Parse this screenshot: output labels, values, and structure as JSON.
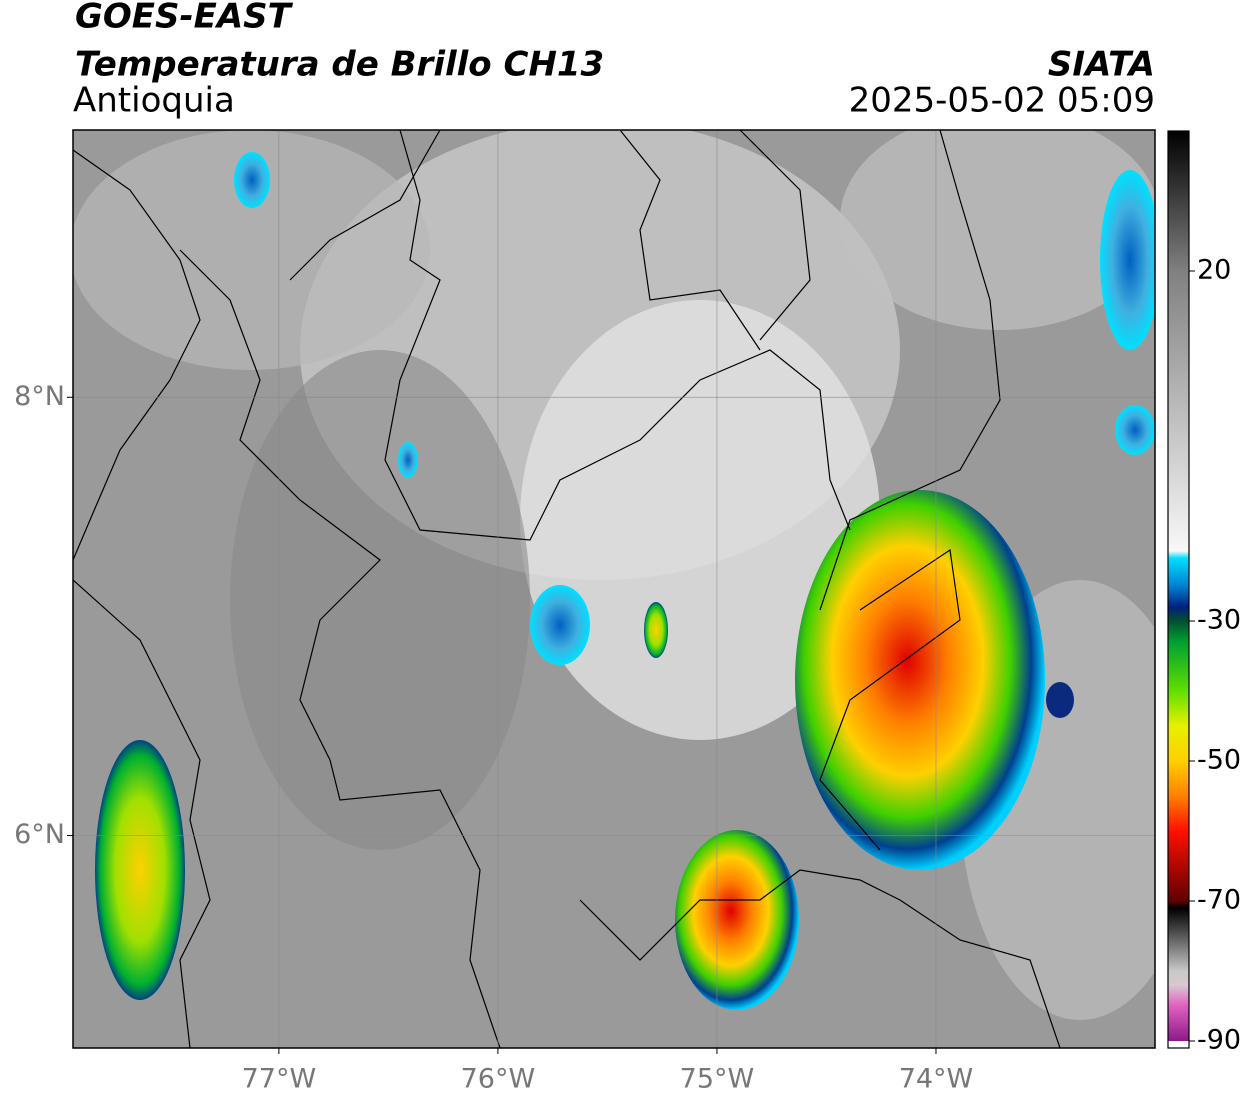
{
  "header": {
    "title": "GOES-EAST",
    "subtitle": "Temperatura de Brillo CH13",
    "region": "Antioquia",
    "source": "SIATA",
    "timestamp": "2025-05-02 05:09"
  },
  "map": {
    "lonlim": [
      -77.94,
      -73.0
    ],
    "latlim": [
      5.03,
      9.22
    ],
    "lonticks": [
      {
        "value": -77,
        "label": "77°W"
      },
      {
        "value": -76,
        "label": "76°W"
      },
      {
        "value": -75,
        "label": "75°W"
      },
      {
        "value": -74,
        "label": "74°W"
      }
    ],
    "latticks": [
      {
        "value": 8,
        "label": "8°N"
      },
      {
        "value": 6,
        "label": "6°N"
      }
    ],
    "grid": true
  },
  "colorbar": {
    "lim": [
      -91,
      40
    ],
    "ticks": [
      20,
      -30,
      -50,
      -70,
      -90
    ],
    "colorscale": [
      [
        -91,
        "#ffffff"
      ],
      [
        -90,
        "#ffffff"
      ],
      [
        -90,
        "#8a1a8a"
      ],
      [
        -85,
        "#e060c0"
      ],
      [
        -82,
        "#d8c8d0"
      ],
      [
        -80,
        "#c8c8c8"
      ],
      [
        -71,
        "#000000"
      ],
      [
        -70,
        "#600000"
      ],
      [
        -60,
        "#ff1000"
      ],
      [
        -55,
        "#ff8000"
      ],
      [
        -50,
        "#ffd000"
      ],
      [
        -45,
        "#e8f000"
      ],
      [
        -40,
        "#60e000"
      ],
      [
        -33,
        "#00a030"
      ],
      [
        -30,
        "#005030"
      ],
      [
        -28,
        "#002080"
      ],
      [
        -25,
        "#0080d0"
      ],
      [
        -21,
        "#00e0ff"
      ],
      [
        -20,
        "#f8f8f8"
      ],
      [
        20,
        "#808080"
      ],
      [
        40,
        "#000000"
      ]
    ]
  }
}
